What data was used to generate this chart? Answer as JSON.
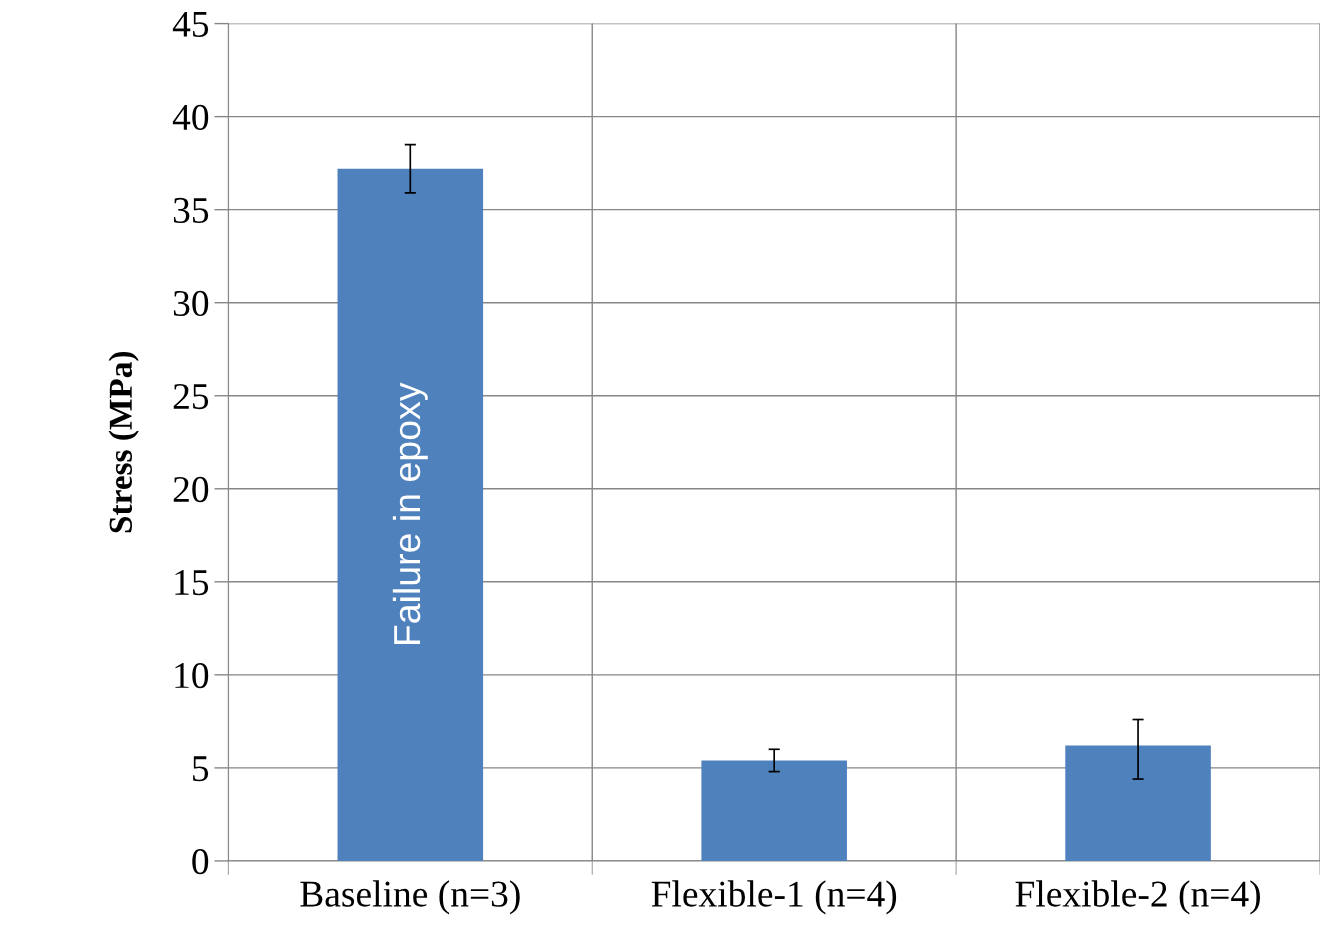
{
  "chart_data": {
    "type": "bar",
    "ylabel": "Stress (MPa)",
    "categories": [
      "Baseline (n=3)",
      "Flexible-1 (n=4)",
      "Flexible-2 (n=4)"
    ],
    "values": [
      37.2,
      5.4,
      6.2
    ],
    "errors": [
      1.3,
      0.6,
      [
        4.4,
        7.6
      ]
    ],
    "color": "#4f81bd",
    "ylim": [
      0,
      45
    ],
    "yticks": [
      0,
      5,
      10,
      15,
      20,
      25,
      30,
      35,
      40,
      45
    ],
    "grid": true,
    "annotations": [
      "Failure in epoxy"
    ]
  }
}
